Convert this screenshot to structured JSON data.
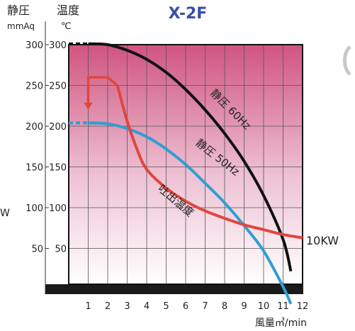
{
  "chart_data": {
    "type": "line",
    "title": "X-2F",
    "y_left_header": "静圧",
    "y_left_unit": "mmAq",
    "y_right_header": "温度",
    "y_right_unit": "℃",
    "xlabel": "風量㎥/min",
    "left_edge_label": "W",
    "xlim": [
      0,
      12
    ],
    "ylim": [
      0,
      300
    ],
    "x_ticks": [
      "1",
      "2",
      "3",
      "4",
      "5",
      "6",
      "7",
      "8",
      "9",
      "10",
      "11",
      "12"
    ],
    "y_ticks_left": [
      "300",
      "250",
      "200",
      "150",
      "100",
      "50"
    ],
    "y_ticks_right": [
      "300",
      "250",
      "200",
      "150",
      "100",
      "50"
    ],
    "grid": true,
    "series": [
      {
        "name": "静圧 60Hz",
        "color": "#111111",
        "dashed_until": 1,
        "x": [
          0,
          1.0,
          2.0,
          3.0,
          4.0,
          5.0,
          6.0,
          7.0,
          8.0,
          9.0,
          10.0,
          11.0,
          11.4
        ],
        "y": [
          301,
          301,
          300,
          293,
          282,
          266,
          245,
          220,
          191,
          157,
          115,
          61,
          22
        ]
      },
      {
        "name": "静圧 50Hz",
        "color": "#2e9fd3",
        "dashed_until": 1,
        "x": [
          0,
          1.0,
          2.0,
          3.0,
          4.0,
          5.0,
          6.0,
          7.0,
          8.0,
          9.0,
          10.0,
          11.0,
          11.4
        ],
        "y": [
          204,
          204,
          203,
          197,
          187,
          172,
          153,
          130,
          106,
          78,
          47,
          3,
          -18
        ]
      },
      {
        "name": "吐出温度",
        "color": "#e0463e",
        "x": [
          2.5,
          3.0,
          3.5,
          4.0,
          5.0,
          6.0,
          7.0,
          8.0,
          9.0,
          10.0,
          11.0,
          12.0
        ],
        "y": [
          250,
          206,
          172,
          147,
          124,
          108,
          96,
          87,
          79,
          73,
          67,
          63
        ]
      },
      {
        "name": "",
        "color": "#e0463e",
        "role": "peak-bracket",
        "x": [
          1.0,
          1.0,
          2.0,
          2.5
        ],
        "y": [
          222,
          260,
          260,
          250
        ]
      }
    ],
    "annotations": [
      {
        "text": "静圧 60Hz",
        "series": "静圧 60Hz"
      },
      {
        "text": "静圧 50Hz",
        "series": "静圧 50Hz"
      },
      {
        "text": "吐出温度",
        "series": "吐出温度"
      },
      {
        "text": "10KW",
        "series": "吐出温度"
      }
    ],
    "bottom_band_color": "#1a1a1a",
    "plot_gradient_top": "#d0547f",
    "plot_gradient_bottom": "#ffffff"
  }
}
